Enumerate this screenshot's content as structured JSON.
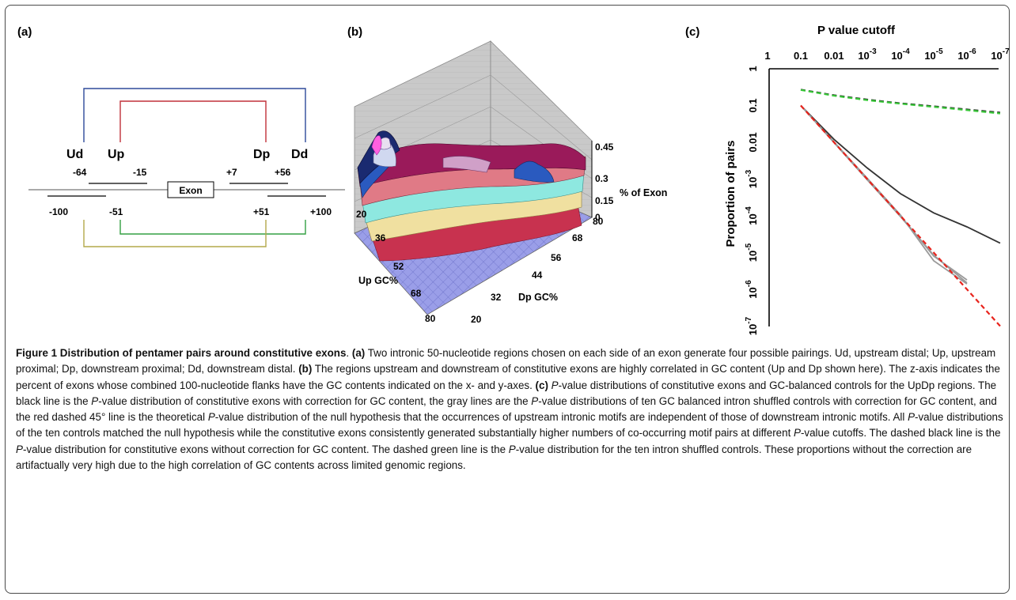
{
  "figure": {
    "panel_a": {
      "label": "(a)",
      "exon_label": "Exon",
      "region_labels": [
        "Ud",
        "Up",
        "Dp",
        "Dd"
      ],
      "coords_top": [
        "-64",
        "-15",
        "+7",
        "+56"
      ],
      "coords_bottom": [
        "-100",
        "-51",
        "+51",
        "+100"
      ],
      "colors": {
        "UdDd": "#2e4a9a",
        "UpDp": "#c0313a",
        "UpDd": "#33a043",
        "UdDp": "#b3a94a"
      }
    },
    "panel_b": {
      "label": "(b)",
      "z_ticks": [
        "0.45",
        "0.3",
        "0.15",
        "0"
      ],
      "z_label": "% of Exon",
      "up_ticks": [
        "20",
        "36",
        "52",
        "68",
        "80"
      ],
      "up_label": "Up GC%",
      "dp_ticks": [
        "80",
        "68",
        "56",
        "44",
        "32",
        "20"
      ],
      "dp_label": "Dp GC%"
    },
    "panel_c": {
      "label": "(c)",
      "x_title": "P value cutoff",
      "x_ticks": [
        {
          "base": "1",
          "exp": ""
        },
        {
          "base": "0.1",
          "exp": ""
        },
        {
          "base": "0.01",
          "exp": ""
        },
        {
          "base": "10",
          "exp": "-3"
        },
        {
          "base": "10",
          "exp": "-4"
        },
        {
          "base": "10",
          "exp": "-5"
        },
        {
          "base": "10",
          "exp": "-6"
        },
        {
          "base": "10",
          "exp": "-7"
        }
      ],
      "y_title": "Proportion of pairs",
      "y_ticks": [
        {
          "base": "1",
          "exp": ""
        },
        {
          "base": "0.1",
          "exp": ""
        },
        {
          "base": "0.01",
          "exp": ""
        },
        {
          "base": "10",
          "exp": "-3"
        },
        {
          "base": "10",
          "exp": "-4"
        },
        {
          "base": "10",
          "exp": "-5"
        },
        {
          "base": "10",
          "exp": "-6"
        },
        {
          "base": "10",
          "exp": "-7"
        }
      ]
    }
  },
  "chart_data": {
    "type": "line",
    "x_scale": "log",
    "y_scale": "log",
    "x_reversed": true,
    "x": [
      0.1,
      0.01,
      0.001,
      0.0001,
      1e-05,
      1e-06,
      1e-07
    ],
    "xlim": [
      1,
      1e-07
    ],
    "ylim": [
      1,
      1e-07
    ],
    "series": [
      {
        "style": "solid",
        "color": "#333333",
        "values": [
          0.1,
          0.012,
          0.002,
          0.0004,
          0.00012,
          5e-05,
          1.8e-05
        ]
      },
      {
        "style": "solid",
        "color": "#9a9a9a",
        "values": [
          0.1,
          0.01,
          0.001,
          0.0001,
          8e-06,
          1.8e-06,
          null
        ]
      },
      {
        "style": "solid",
        "color": "#9a9a9a",
        "values": [
          0.1,
          0.0098,
          0.00095,
          9.5e-05,
          8.5e-06,
          1.5e-06,
          null
        ]
      },
      {
        "style": "solid",
        "color": "#9a9a9a",
        "values": [
          0.1,
          0.0102,
          0.00105,
          0.000105,
          6e-06,
          1.4e-06,
          null
        ]
      },
      {
        "style": "dashed",
        "color": "#e8231c",
        "values": [
          0.1,
          0.01,
          0.001,
          0.0001,
          1e-05,
          1e-06,
          1e-07
        ]
      },
      {
        "style": "dashed",
        "color": "#222222",
        "values": [
          0.27,
          0.19,
          0.145,
          0.115,
          0.095,
          0.078,
          0.064
        ]
      },
      {
        "style": "dashed",
        "color": "#38c838",
        "values": [
          0.265,
          0.185,
          0.14,
          0.112,
          0.092,
          0.075,
          0.061
        ]
      }
    ]
  },
  "caption": {
    "title": "Figure 1 Distribution of pentamer pairs around constitutive exons",
    "p1": [
      {
        "t": "Figure 1 Distribution of pentamer pairs around constitutive exons",
        "s": "b"
      },
      {
        "t": ". ",
        "s": ""
      },
      {
        "t": "(a)",
        "s": "b"
      },
      {
        "t": " Two intronic 50-nucleotide regions chosen on each side of an exon generate four possible pairings. Ud, upstream distal; Up, upstream proximal; Dp, downstream proximal; Dd, downstream distal. ",
        "s": ""
      },
      {
        "t": "(b)",
        "s": "b"
      },
      {
        "t": " The regions upstream and downstream of constitutive exons are highly correlated in GC content (Up and Dp shown here). The z-axis indicates the percent of exons whose combined 100-nucleotide flanks have the GC contents indicated on the x- and y-axes. ",
        "s": ""
      },
      {
        "t": "(c)",
        "s": "b"
      },
      {
        "t": " ",
        "s": ""
      },
      {
        "t": "P",
        "s": "i"
      },
      {
        "t": "-value distributions of constitutive exons and GC-balanced controls for the UpDp regions. The black line is the ",
        "s": ""
      },
      {
        "t": "P",
        "s": "i"
      },
      {
        "t": "-value distribution of constitutive exons with correction for GC content, the gray lines are the ",
        "s": ""
      },
      {
        "t": "P",
        "s": "i"
      },
      {
        "t": "-value distributions of ten GC balanced intron shuffled controls with correction for GC content, and the red dashed 45° line is the theoretical ",
        "s": ""
      },
      {
        "t": "P",
        "s": "i"
      },
      {
        "t": "-value distribution of the null hypothesis that the occurrences of upstream intronic motifs are independent of those of downstream intronic motifs. All ",
        "s": ""
      },
      {
        "t": "P",
        "s": "i"
      },
      {
        "t": "-value distributions of the ten controls matched the null hypothesis while the constitutive exons consistently generated substantially higher numbers of co-occurring motif pairs at different ",
        "s": ""
      },
      {
        "t": "P",
        "s": "i"
      },
      {
        "t": "-value cutoffs. The dashed black line is the ",
        "s": ""
      },
      {
        "t": "P",
        "s": "i"
      },
      {
        "t": "-value distribution for constitutive exons without correction for GC content. The dashed green line is the ",
        "s": ""
      },
      {
        "t": "P",
        "s": "i"
      },
      {
        "t": "-value distribution for the ten intron shuffled controls. These proportions without the correction are artifactually very high due to the high correlation of GC contents across limited genomic regions.",
        "s": ""
      }
    ]
  }
}
